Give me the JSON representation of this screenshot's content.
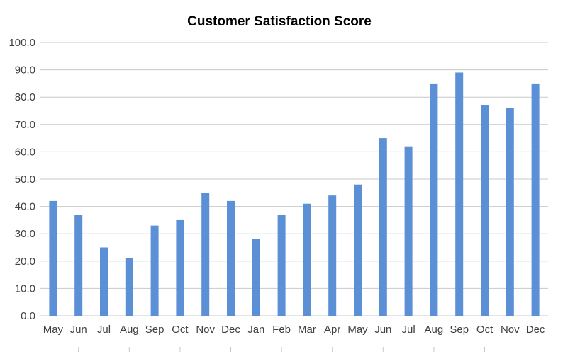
{
  "chart_data": {
    "type": "bar",
    "title": "Customer Satisfaction Score",
    "xlabel": "",
    "ylabel": "",
    "ylim": [
      0,
      100
    ],
    "ytick_step": 10,
    "ytick_decimals": 1,
    "grid": true,
    "legend": "none",
    "bar_color": "#5B8FD6",
    "grid_color": "#C8C8C8",
    "categories": [
      "May",
      "Jun",
      "Jul",
      "Aug",
      "Sep",
      "Oct",
      "Nov",
      "Dec",
      "Jan",
      "Feb",
      "Mar",
      "Apr",
      "May",
      "Jun",
      "Jul",
      "Aug",
      "Sep",
      "Oct",
      "Nov",
      "Dec"
    ],
    "values": [
      42,
      37,
      25,
      21,
      33,
      35,
      45,
      42,
      28,
      37,
      41,
      44,
      48,
      65,
      62,
      85,
      89,
      77,
      76,
      85
    ]
  }
}
